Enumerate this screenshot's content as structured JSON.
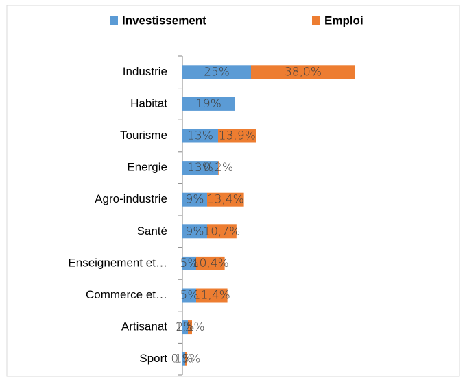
{
  "chart_data": {
    "type": "stacked-bar-horizontal",
    "categories": [
      "Industrie",
      "Habitat",
      "Tourisme",
      "Energie",
      "Agro-industrie",
      "Santé",
      "Enseignement et…",
      "Commerce et…",
      "Artisanat",
      "Sport"
    ],
    "series": [
      {
        "name": "Investissement",
        "color": "#5b9bd5",
        "values": [
          25,
          19,
          13,
          13,
          9,
          9,
          5,
          5,
          2,
          1
        ],
        "value_labels": [
          "25%",
          "19%",
          "13%",
          "13%",
          "9%",
          "9%",
          "5%",
          "5%",
          "2%",
          "1%"
        ]
      },
      {
        "name": "Emploi",
        "color": "#ed7d31",
        "values": [
          38.0,
          null,
          13.9,
          0.2,
          13.4,
          10.7,
          10.4,
          11.4,
          1.5,
          0.5
        ],
        "value_labels": [
          "38,0%",
          null,
          "13,9%",
          "0,2%",
          "13,4%",
          "10,7%",
          "10,4%",
          "11,4%",
          "1,5%",
          "0,5%"
        ]
      }
    ],
    "xlim": [
      0,
      100
    ],
    "legend": "top"
  }
}
